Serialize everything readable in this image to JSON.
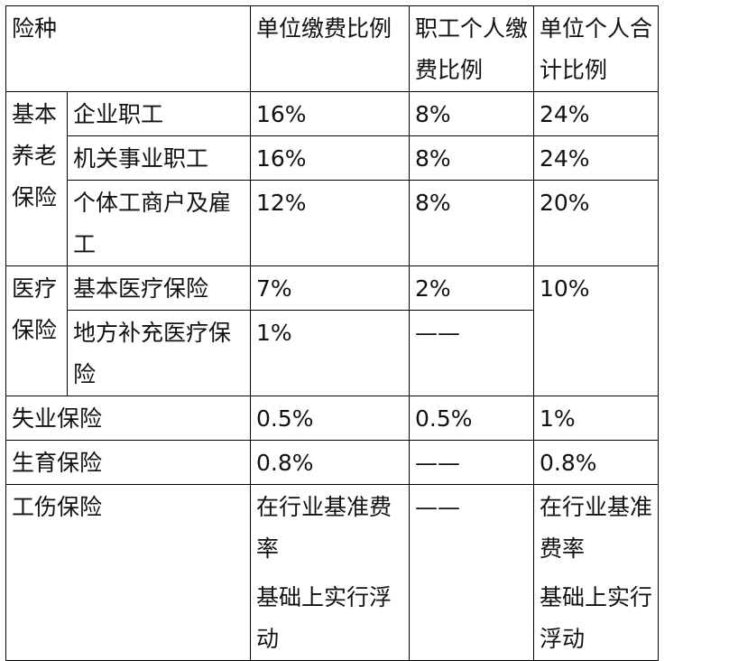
{
  "header": {
    "type": "险种",
    "employer_rate": "单位缴费比例",
    "employee_rate": "职工个人缴费比例",
    "total_rate": "单位个人合计比例"
  },
  "pension": {
    "group": "基本养老保险",
    "rows": [
      {
        "name": "企业职工",
        "employer": "16%",
        "employee": "8%",
        "total": "24%"
      },
      {
        "name": "机关事业职工",
        "employer": "16%",
        "employee": "8%",
        "total": "24%"
      },
      {
        "name": "个体工商户及雇工",
        "employer": "12%",
        "employee": "8%",
        "total": "20%"
      }
    ]
  },
  "medical": {
    "group_line1": "医疗",
    "group_line2": "保险",
    "total": "10%",
    "rows": [
      {
        "name": "基本医疗保险",
        "employer": "7%",
        "employee": "2%"
      },
      {
        "name": "地方补充医疗保险",
        "employer": "1%",
        "employee": "——"
      }
    ]
  },
  "unemployment": {
    "name": "失业保险",
    "employer": "0.5%",
    "employee": "0.5%",
    "total": "1%"
  },
  "maternity": {
    "name": "生育保险",
    "employer": "0.8%",
    "employee": "——",
    "total": "0.8%"
  },
  "injury": {
    "name": "工伤保险",
    "employer_line1": "在行业基准费率",
    "employer_line2": "基础上实行浮动",
    "employee": "——",
    "total_line1": "在行业基准费率",
    "total_line2": "基础上实行浮动"
  }
}
